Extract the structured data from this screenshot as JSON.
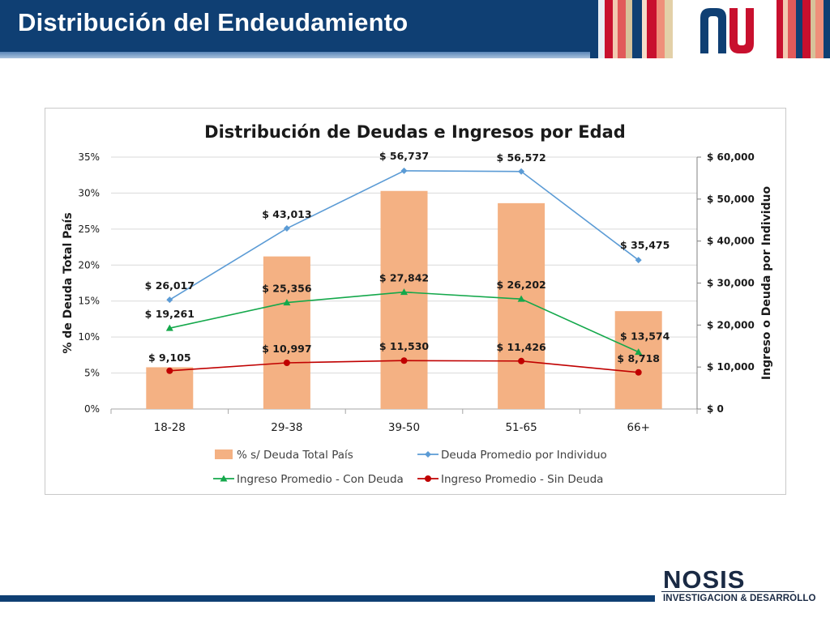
{
  "page_title": "Distribución del Endeudamiento",
  "brand": {
    "colors": {
      "navy": "#0f3f73",
      "red": "#c8102e"
    },
    "nosis_name": "NOSIS",
    "nosis_tagline": "INVESTIGACION & DESARROLLO"
  },
  "chart_data": {
    "type": "bar",
    "title": "Distribución de Deudas e Ingresos por Edad",
    "categories": [
      "18-28",
      "29-38",
      "39-50",
      "51-65",
      "66+"
    ],
    "y_left": {
      "label": "% de Deuda Total País",
      "range": [
        0,
        35
      ],
      "ticks": [
        0,
        5,
        10,
        15,
        20,
        25,
        30,
        35
      ],
      "tick_labels": [
        "0%",
        "5%",
        "10%",
        "15%",
        "20%",
        "25%",
        "30%",
        "35%"
      ]
    },
    "y_right": {
      "label": "Ingreso o Deuda por Individuo",
      "range": [
        0,
        60000
      ],
      "ticks": [
        0,
        10000,
        20000,
        30000,
        40000,
        50000,
        60000
      ],
      "tick_labels": [
        "$ 0",
        "$ 10,000",
        "$ 20,000",
        "$ 30,000",
        "$ 40,000",
        "$ 50,000",
        "$ 60,000"
      ]
    },
    "grid": true,
    "legend_position": "bottom",
    "series": [
      {
        "name": "% s/ Deuda Total País",
        "kind": "bar",
        "axis": "left",
        "color": "#f4b183",
        "values": [
          5.8,
          21.2,
          30.3,
          28.6,
          13.6
        ]
      },
      {
        "name": "Deuda Promedio por Individuo",
        "kind": "line",
        "axis": "right",
        "color": "#5b9bd5",
        "marker": "diamond",
        "values": [
          26017,
          43013,
          56737,
          56572,
          35475
        ],
        "labels": [
          "$ 26,017",
          "$ 43,013",
          "$ 56,737",
          "$ 56,572",
          "$ 35,475"
        ]
      },
      {
        "name": "Ingreso Promedio - Con Deuda",
        "kind": "line",
        "axis": "right",
        "color": "#14a84b",
        "marker": "triangle",
        "values": [
          19261,
          25356,
          27842,
          26202,
          13574
        ],
        "labels": [
          "$ 19,261",
          "$ 25,356",
          "$ 27,842",
          "$ 26,202",
          "$ 13,574"
        ]
      },
      {
        "name": "Ingreso Promedio - Sin Deuda",
        "kind": "line",
        "axis": "right",
        "color": "#c00000",
        "marker": "circle",
        "values": [
          9105,
          10997,
          11530,
          11426,
          8718
        ],
        "labels": [
          "$ 9,105",
          "$ 10,997",
          "$ 11,530",
          "$ 11,426",
          "$ 8,718"
        ]
      }
    ]
  }
}
